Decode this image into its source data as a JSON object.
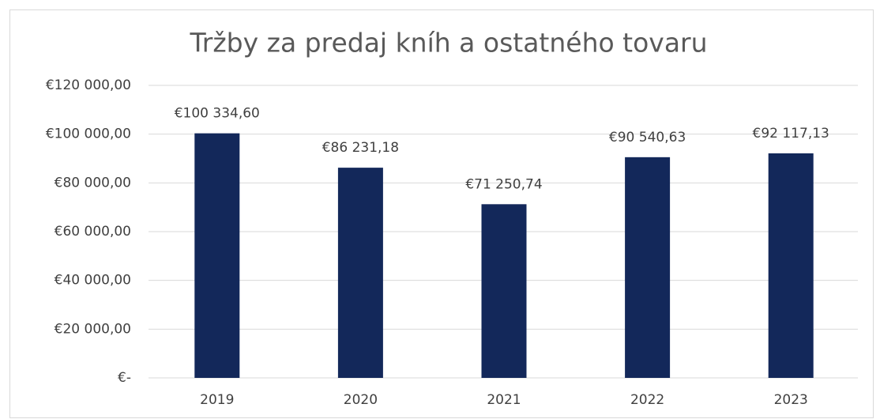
{
  "chart_data": {
    "type": "bar",
    "title": "Tržby za predaj kníh a ostatného tovaru",
    "categories": [
      "2019",
      "2020",
      "2021",
      "2022",
      "2023"
    ],
    "values": [
      100334.6,
      86231.18,
      71250.74,
      90540.63,
      92117.13
    ],
    "value_labels": [
      "€100 334,60",
      "€86 231,18",
      "€71 250,74",
      "€90 540,63",
      "€92 117,13"
    ],
    "color": "#13285a",
    "ylim": [
      0,
      120000
    ],
    "yticks": [
      {
        "value": 0,
        "label": "€-"
      },
      {
        "value": 20000,
        "label": "€20 000,00"
      },
      {
        "value": 40000,
        "label": "€40 000,00"
      },
      {
        "value": 60000,
        "label": "€60 000,00"
      },
      {
        "value": 80000,
        "label": "€80 000,00"
      },
      {
        "value": 100000,
        "label": "€100 000,00"
      },
      {
        "value": 120000,
        "label": "€120 000,00"
      }
    ],
    "grid": true
  }
}
